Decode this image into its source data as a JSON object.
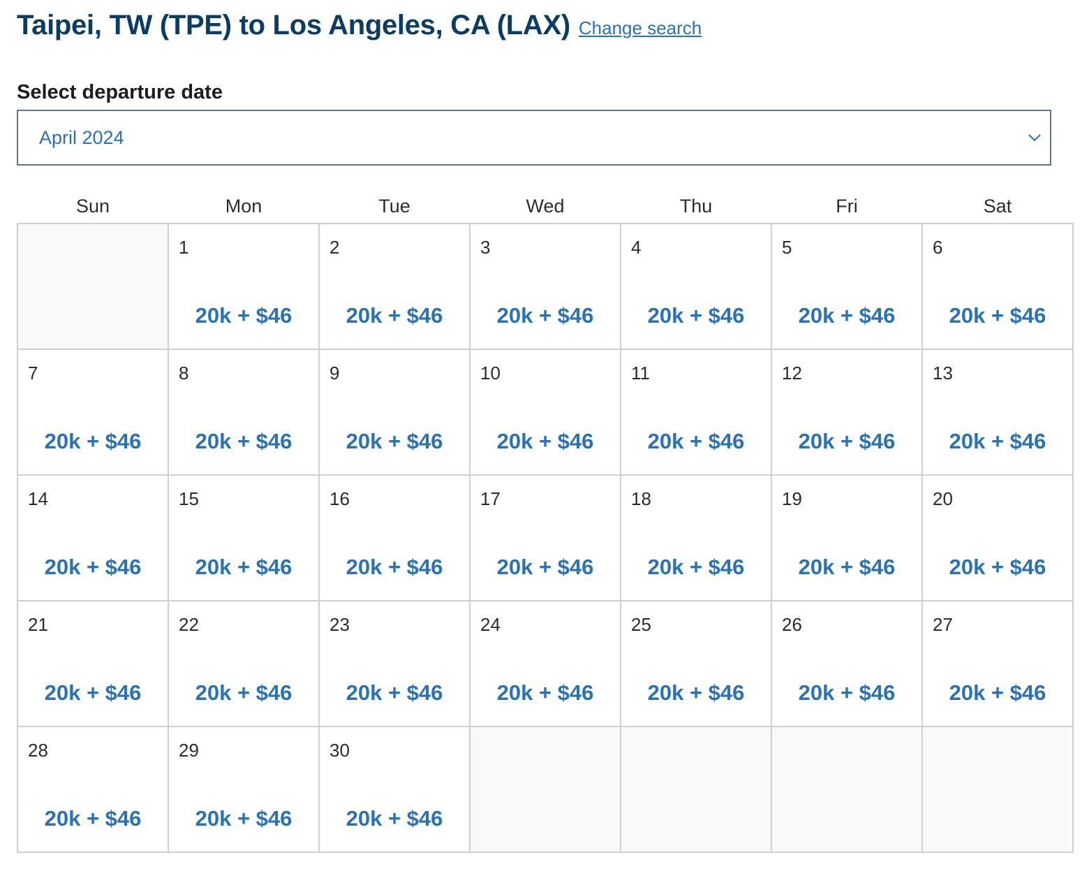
{
  "header": {
    "title": "Taipei, TW (TPE) to Los Angeles, CA (LAX)",
    "change_search": "Change search"
  },
  "departure": {
    "label": "Select departure date",
    "selected_month": "April 2024"
  },
  "calendar": {
    "weekdays": [
      "Sun",
      "Mon",
      "Tue",
      "Wed",
      "Thu",
      "Fri",
      "Sat"
    ],
    "leading_empty_cells": 1,
    "days": [
      {
        "day": "1",
        "price": "20k + $46"
      },
      {
        "day": "2",
        "price": "20k + $46"
      },
      {
        "day": "3",
        "price": "20k + $46"
      },
      {
        "day": "4",
        "price": "20k + $46"
      },
      {
        "day": "5",
        "price": "20k + $46"
      },
      {
        "day": "6",
        "price": "20k + $46"
      },
      {
        "day": "7",
        "price": "20k + $46"
      },
      {
        "day": "8",
        "price": "20k + $46"
      },
      {
        "day": "9",
        "price": "20k + $46"
      },
      {
        "day": "10",
        "price": "20k + $46"
      },
      {
        "day": "11",
        "price": "20k + $46"
      },
      {
        "day": "12",
        "price": "20k + $46"
      },
      {
        "day": "13",
        "price": "20k + $46"
      },
      {
        "day": "14",
        "price": "20k + $46"
      },
      {
        "day": "15",
        "price": "20k + $46"
      },
      {
        "day": "16",
        "price": "20k + $46"
      },
      {
        "day": "17",
        "price": "20k + $46"
      },
      {
        "day": "18",
        "price": "20k + $46"
      },
      {
        "day": "19",
        "price": "20k + $46"
      },
      {
        "day": "20",
        "price": "20k + $46"
      },
      {
        "day": "21",
        "price": "20k + $46"
      },
      {
        "day": "22",
        "price": "20k + $46"
      },
      {
        "day": "23",
        "price": "20k + $46"
      },
      {
        "day": "24",
        "price": "20k + $46"
      },
      {
        "day": "25",
        "price": "20k + $46"
      },
      {
        "day": "26",
        "price": "20k + $46"
      },
      {
        "day": "27",
        "price": "20k + $46"
      },
      {
        "day": "28",
        "price": "20k + $46"
      },
      {
        "day": "29",
        "price": "20k + $46"
      },
      {
        "day": "30",
        "price": "20k + $46"
      }
    ],
    "trailing_empty_cells": 4
  },
  "icons": {
    "dropdown": "chevron-down-icon"
  },
  "colors": {
    "title": "#0b3d63",
    "accent": "#2a72b5",
    "border": "#cfcfcf",
    "empty_cell": "#f9f9f9"
  }
}
